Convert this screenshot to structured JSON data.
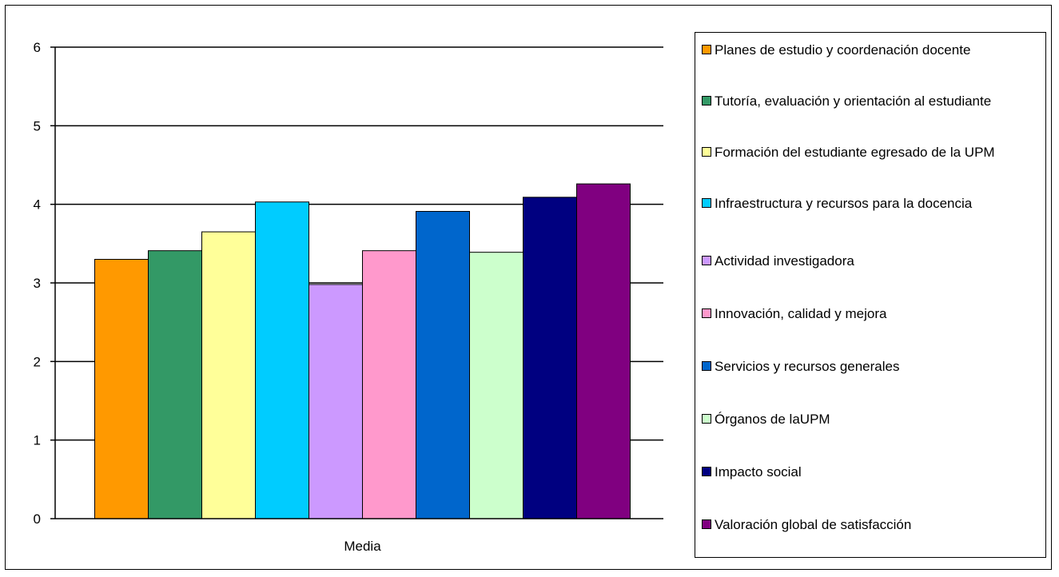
{
  "chart_data": {
    "type": "bar",
    "title": "",
    "xlabel": "",
    "ylabel": "",
    "categories": [
      "Media"
    ],
    "ylim": [
      0,
      6
    ],
    "yticks": [
      0,
      1,
      2,
      3,
      4,
      5,
      6
    ],
    "grid": true,
    "legend_position": "right",
    "series": [
      {
        "name": "Planes de estudio y coordenación docente",
        "values": [
          3.3
        ],
        "color": "#FF9900"
      },
      {
        "name": "Tutoría, evaluación y orientación al estudiante",
        "values": [
          3.41
        ],
        "color": "#339966"
      },
      {
        "name": "Formación del estudiante egresado de la UPM",
        "values": [
          3.65
        ],
        "color": "#FFFF99"
      },
      {
        "name": "Infraestructura y recursos para la docencia",
        "values": [
          4.03
        ],
        "color": "#00CCFF"
      },
      {
        "name": "Actividad investigadora",
        "values": [
          2.98
        ],
        "color": "#CC99FF"
      },
      {
        "name": "Innovación, calidad y mejora",
        "values": [
          3.41
        ],
        "color": "#FF99CC"
      },
      {
        "name": "Servicios y recursos generales",
        "values": [
          3.91
        ],
        "color": "#0066CC"
      },
      {
        "name": "Órganos de laUPM",
        "values": [
          3.39
        ],
        "color": "#CCFFCC"
      },
      {
        "name": "Impacto social",
        "values": [
          4.09
        ],
        "color": "#000080"
      },
      {
        "name": "Valoración global de satisfacción",
        "values": [
          4.26
        ],
        "color": "#800080"
      }
    ]
  }
}
